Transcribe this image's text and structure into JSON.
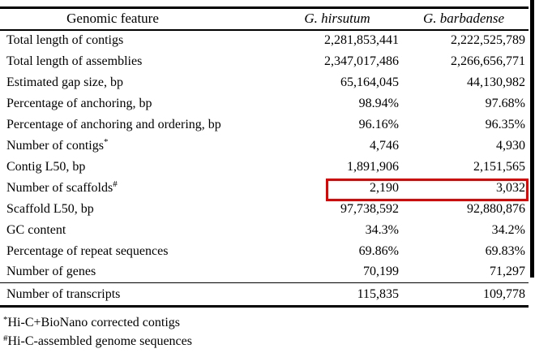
{
  "table": {
    "headers": {
      "feature": "Genomic feature",
      "hirsutum": "G. hirsutum",
      "barbadense": "G. barbadense"
    },
    "rows": [
      {
        "feature": "Total length of contigs",
        "hirsutum": "2,281,853,441",
        "barbadense": "2,222,525,789"
      },
      {
        "feature": "Total length of assemblies",
        "hirsutum": "2,347,017,486",
        "barbadense": "2,266,656,771"
      },
      {
        "feature": "Estimated gap size, bp",
        "hirsutum": "65,164,045",
        "barbadense": "44,130,982"
      },
      {
        "feature": "Percentage of anchoring, bp",
        "hirsutum": "98.94%",
        "barbadense": "97.68%"
      },
      {
        "feature": "Percentage of anchoring and ordering, bp",
        "hirsutum": "96.16%",
        "barbadense": "96.35%"
      },
      {
        "feature": "Number of contigs",
        "sup": "*",
        "hirsutum": "4,746",
        "barbadense": "4,930"
      },
      {
        "feature": "Contig L50, bp",
        "hirsutum": "1,891,906",
        "barbadense": "2,151,565"
      },
      {
        "feature": "Number of scaffolds",
        "sup": "#",
        "hirsutum": "2,190",
        "barbadense": "3,032",
        "highlighted": true
      },
      {
        "feature": "Scaffold L50, bp",
        "hirsutum": "97,738,592",
        "barbadense": "92,880,876"
      },
      {
        "feature": "GC content",
        "hirsutum": "34.3%",
        "barbadense": "34.2%"
      },
      {
        "feature": "Percentage of repeat sequences",
        "hirsutum": "69.86%",
        "barbadense": "69.83%"
      },
      {
        "feature": "Number of genes",
        "hirsutum": "70,199",
        "barbadense": "71,297"
      },
      {
        "feature": "Number of transcripts",
        "hirsutum": "115,835",
        "barbadense": "109,778"
      }
    ],
    "footnotes": [
      {
        "marker": "*",
        "text": "Hi-C+BioNano corrected contigs"
      },
      {
        "marker": "#",
        "text": "Hi-C-assembled genome sequences"
      }
    ]
  },
  "annotation": {
    "highlight_color": "#e60000",
    "highlighted_row": "Number of scaffolds"
  }
}
